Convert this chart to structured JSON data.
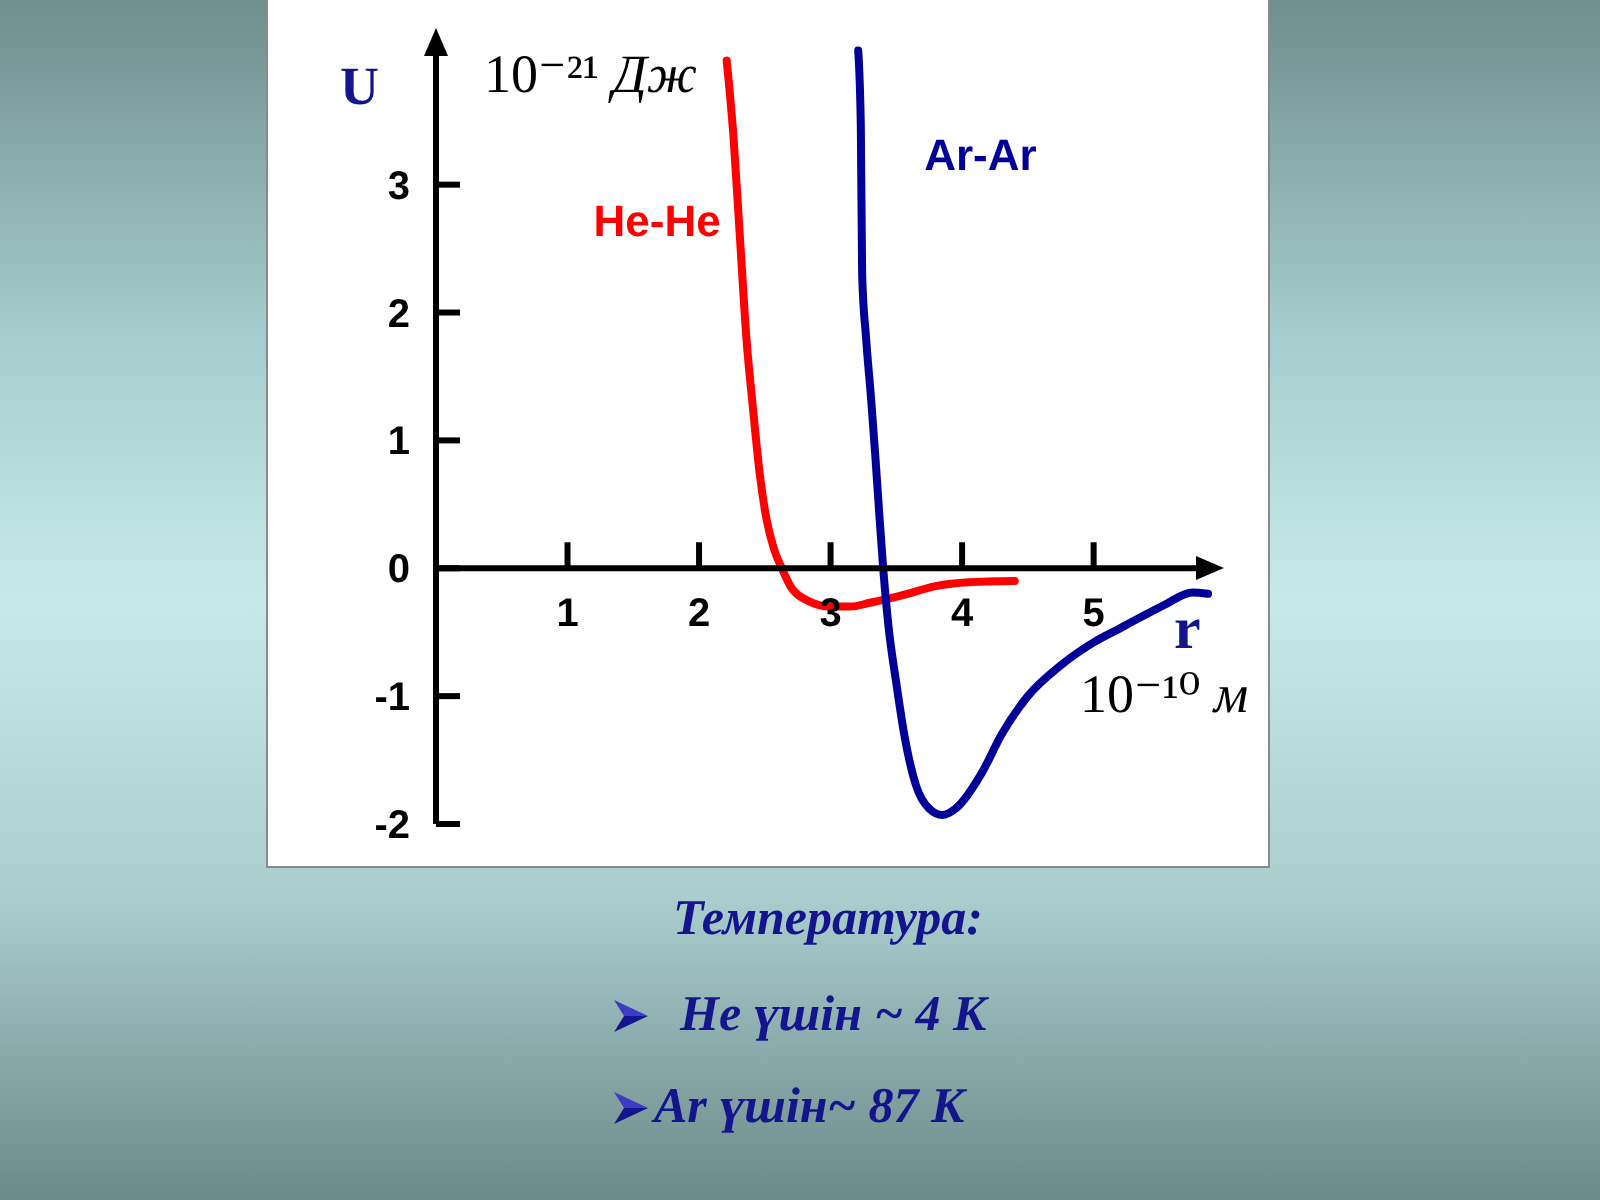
{
  "chart_data": {
    "type": "line",
    "xlabel": "r",
    "ylabel": "U",
    "annotations": [
      "10⁻²¹ Дж",
      "10⁻¹⁰ м",
      "Температура:",
      "He үшін ~ 4 K",
      "Ar үшін~ 87 K"
    ],
    "xlim": [
      0,
      5.9
    ],
    "xticks": [
      1,
      2,
      3,
      4,
      5
    ],
    "ylim": [
      -2,
      4.1
    ],
    "yticks": [
      -2,
      -1,
      0,
      1,
      2,
      3
    ],
    "marker": "none",
    "line_style": "solid",
    "series": [
      {
        "name": "He-He",
        "color": "#ff0000",
        "x": [
          2.21,
          2.26,
          2.31,
          2.36,
          2.41,
          2.46,
          2.51,
          2.57,
          2.63,
          2.7,
          2.82,
          3.0,
          3.15,
          3.3,
          3.55,
          3.8,
          4.05,
          4.4
        ],
        "values": [
          3.97,
          3.4,
          2.6,
          1.8,
          1.25,
          0.75,
          0.4,
          0.15,
          0.0,
          -0.15,
          -0.25,
          -0.3,
          -0.3,
          -0.27,
          -0.21,
          -0.14,
          -0.11,
          -0.1
        ]
      },
      {
        "name": "Ar-Ar",
        "color": "#000099",
        "x": [
          3.21,
          3.23,
          3.24,
          3.27,
          3.31,
          3.34,
          3.37,
          3.4,
          3.44,
          3.5,
          3.56,
          3.65,
          3.75,
          3.85,
          3.95,
          4.15,
          4.3,
          4.5,
          4.75,
          5.0,
          5.2,
          5.4,
          5.55,
          5.75,
          5.87
        ],
        "values": [
          4.05,
          3.45,
          2.3,
          1.8,
          1.3,
          0.88,
          0.43,
          0.0,
          -0.45,
          -0.9,
          -1.3,
          -1.7,
          -1.88,
          -1.93,
          -1.88,
          -1.6,
          -1.3,
          -1.0,
          -0.76,
          -0.58,
          -0.47,
          -0.36,
          -0.28,
          -0.19,
          -0.2
        ]
      }
    ]
  }
}
